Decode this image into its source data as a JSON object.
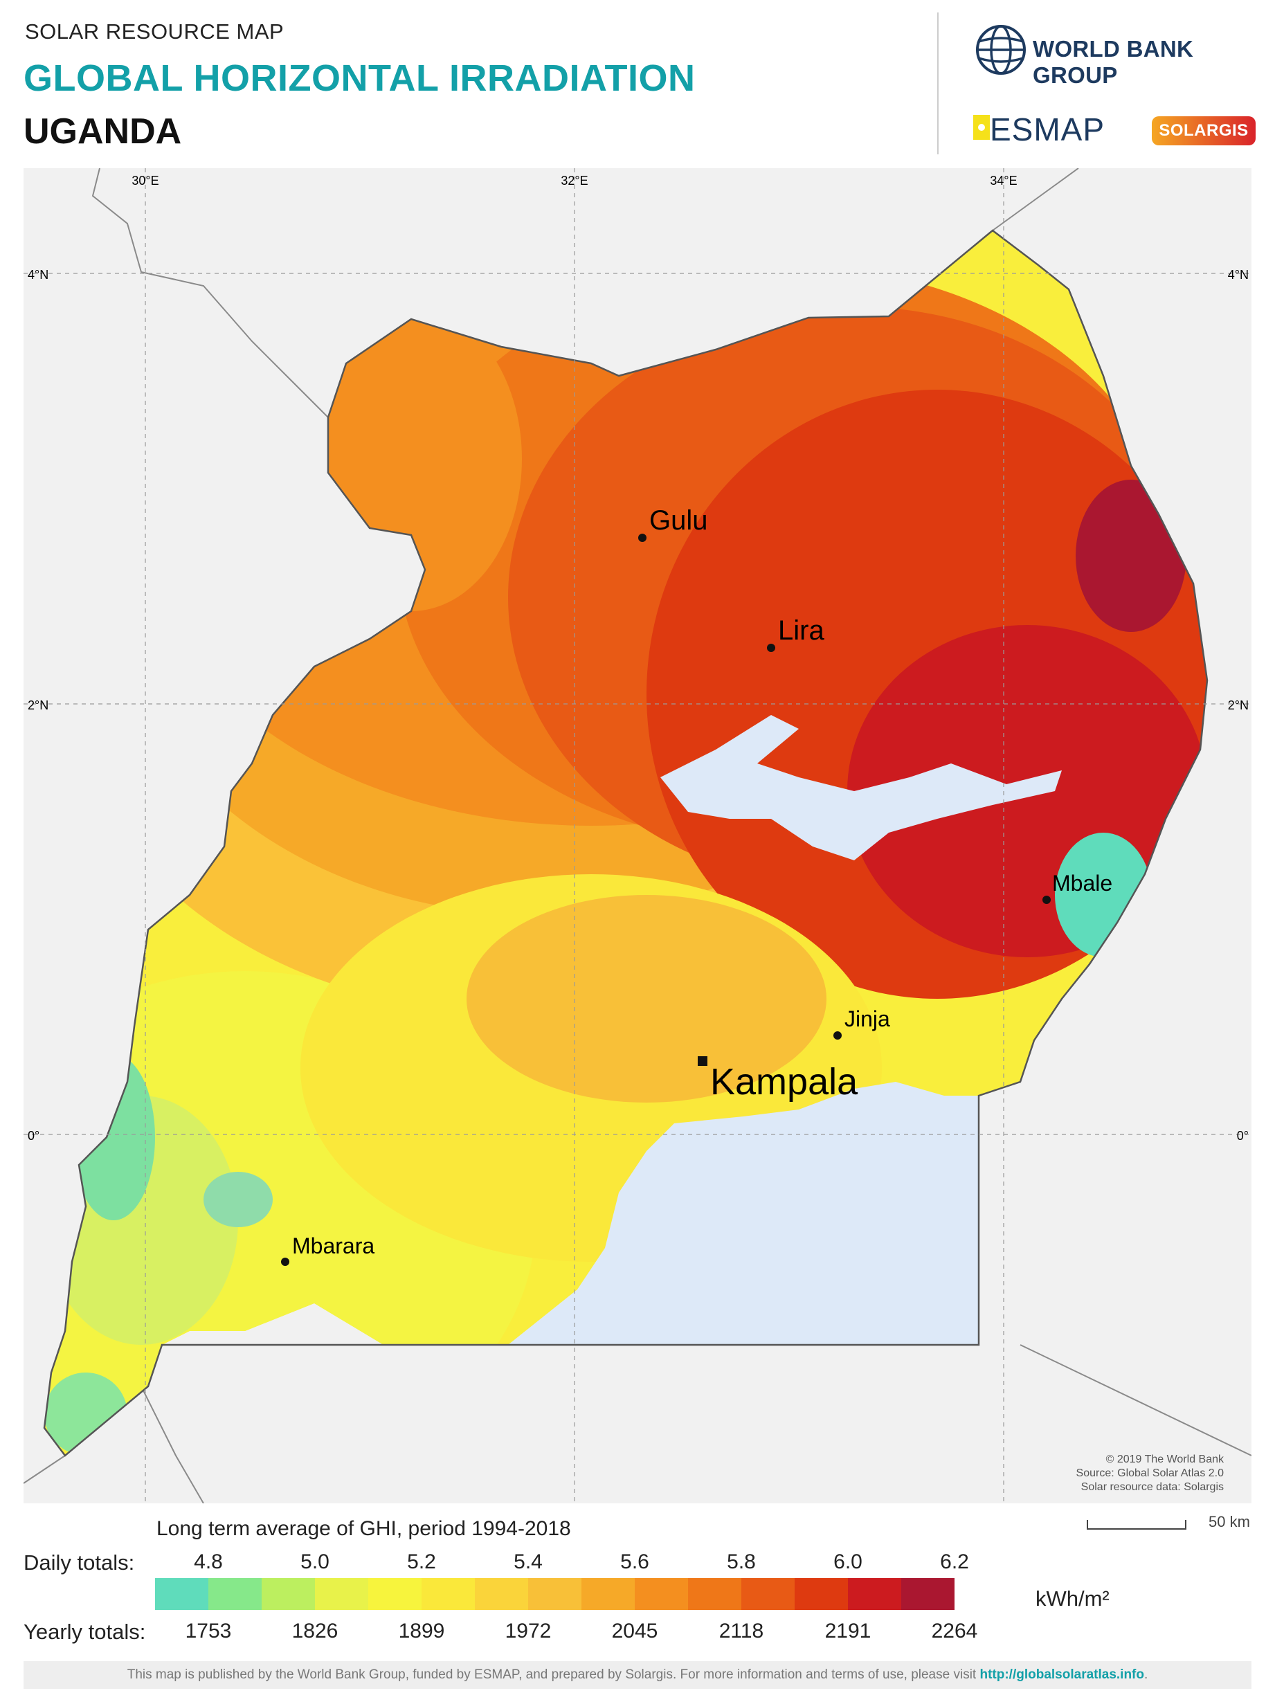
{
  "header": {
    "supertitle": "SOLAR RESOURCE MAP",
    "title": "GLOBAL HORIZONTAL IRRADIATION",
    "country": "UGANDA"
  },
  "logos": {
    "wbg": "WORLD BANK GROUP",
    "esmap": "ESMAP",
    "solargis": "SOLARGIS"
  },
  "map": {
    "longitude_labels": [
      "30°E",
      "32°E",
      "34°E"
    ],
    "latitude_labels": [
      "4°N",
      "2°N",
      "0°"
    ],
    "cities": [
      {
        "name": "Gulu",
        "type": "city"
      },
      {
        "name": "Lira",
        "type": "city"
      },
      {
        "name": "Mbale",
        "type": "city"
      },
      {
        "name": "Jinja",
        "type": "city"
      },
      {
        "name": "Kampala",
        "type": "capital"
      },
      {
        "name": "Mbarara",
        "type": "city"
      }
    ],
    "credits": [
      "© 2019 The World Bank",
      "Source: Global Solar Atlas 2.0",
      "Solar resource data: Solargis"
    ],
    "colors": {
      "water": "#dde9f8",
      "background": "#f1f1f1",
      "border": "#666666"
    }
  },
  "legend": {
    "title": "Long term average of GHI, period 1994-2018",
    "scale_label": "50 km",
    "daily_label": "Daily totals:",
    "daily_values": [
      "4.8",
      "5.0",
      "5.2",
      "5.4",
      "5.6",
      "5.8",
      "6.0",
      "6.2"
    ],
    "yearly_label": "Yearly totals:",
    "yearly_values": [
      "1753",
      "1826",
      "1899",
      "1972",
      "2045",
      "2118",
      "2191",
      "2264"
    ],
    "unit": "kWh/m²",
    "colors": [
      "#5fdcbb",
      "#86e88a",
      "#bcef5f",
      "#e8f24a",
      "#f7f43d",
      "#fae83a",
      "#fad43a",
      "#f8c038",
      "#f6a928",
      "#f48f1f",
      "#ef7718",
      "#e85a15",
      "#de3a10",
      "#cc1b1f",
      "#aa1730"
    ]
  },
  "footer": {
    "text": "This map is published by the World Bank Group, funded by ESMAP, and prepared by Solargis. For more information and terms of use, please visit ",
    "link": "http://globalsolaratlas.info",
    "end": "."
  }
}
